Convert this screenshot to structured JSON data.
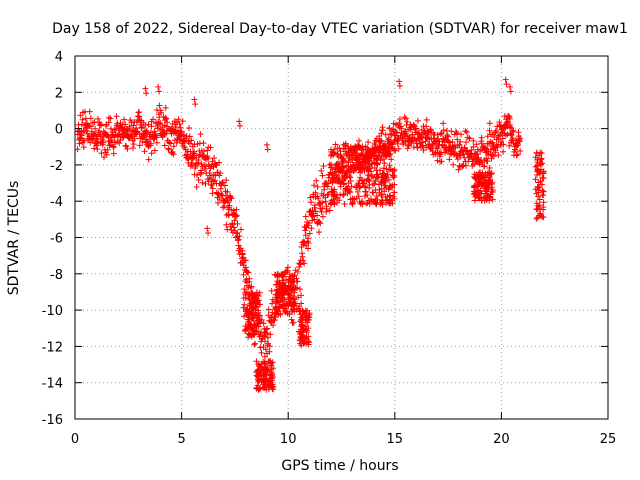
{
  "chart_data": {
    "type": "scatter",
    "title": "Day 158 of 2022, Sidereal Day-to-day VTEC variation (SDTVAR) for receiver maw1",
    "xlabel": "GPS time / hours",
    "ylabel": "SDTVAR / TECUs",
    "xlim": [
      0,
      25
    ],
    "ylim": [
      -16,
      4
    ],
    "xticks": [
      0,
      5,
      10,
      15,
      20,
      25
    ],
    "yticks": [
      -16,
      -14,
      -12,
      -10,
      -8,
      -6,
      -4,
      -2,
      0,
      2,
      4
    ],
    "grid": true,
    "marker": "plus",
    "color": "#ff0000",
    "series": [
      {
        "name": "SDTVAR",
        "trend": [
          [
            0.1,
            -0.3
          ],
          [
            0.5,
            0.1
          ],
          [
            1.0,
            -0.6
          ],
          [
            1.5,
            -0.5
          ],
          [
            2.0,
            -0.2
          ],
          [
            2.5,
            -0.3
          ],
          [
            3.0,
            0.0
          ],
          [
            3.5,
            -0.6
          ],
          [
            4.0,
            0.4
          ],
          [
            4.5,
            -0.6
          ],
          [
            5.0,
            -0.4
          ],
          [
            5.5,
            -1.5
          ],
          [
            6.0,
            -1.8
          ],
          [
            6.5,
            -2.5
          ],
          [
            7.0,
            -3.6
          ],
          [
            7.3,
            -4.2
          ],
          [
            7.6,
            -5.6
          ],
          [
            7.9,
            -7.5
          ],
          [
            8.2,
            -9.3
          ],
          [
            8.5,
            -10.4
          ],
          [
            8.8,
            -11.5
          ],
          [
            9.1,
            -11.0
          ],
          [
            9.4,
            -10.0
          ],
          [
            9.7,
            -9.0
          ],
          [
            10.0,
            -8.8
          ],
          [
            10.3,
            -9.8
          ],
          [
            10.6,
            -8.0
          ],
          [
            10.8,
            -6.0
          ],
          [
            11.0,
            -4.8
          ],
          [
            11.5,
            -4.0
          ],
          [
            12.0,
            -3.0
          ],
          [
            12.5,
            -2.2
          ],
          [
            13.0,
            -1.7
          ],
          [
            13.5,
            -1.7
          ],
          [
            14.0,
            -1.4
          ],
          [
            14.5,
            -0.8
          ],
          [
            15.0,
            -0.6
          ],
          [
            15.5,
            0.0
          ],
          [
            16.0,
            -0.6
          ],
          [
            16.5,
            -0.4
          ],
          [
            17.0,
            -0.9
          ],
          [
            17.5,
            -0.8
          ],
          [
            18.0,
            -1.2
          ],
          [
            18.5,
            -1.3
          ],
          [
            19.0,
            -1.7
          ],
          [
            19.5,
            -1.0
          ],
          [
            20.0,
            -0.2
          ],
          [
            20.3,
            0.2
          ],
          [
            20.6,
            -0.9
          ],
          [
            20.9,
            -0.5
          ]
        ],
        "spread": [
          1.4,
          1.3,
          1.4,
          1.3,
          1.2,
          1.2,
          1.4,
          1.6,
          1.5,
          1.4,
          1.5,
          1.7,
          1.7,
          1.6,
          1.6,
          1.5,
          1.6,
          1.7,
          1.9,
          2.3,
          2.6,
          2.8,
          2.2,
          1.9,
          1.8,
          2.2,
          2.2,
          2.0,
          2.2,
          2.2,
          2.0,
          1.8,
          1.4,
          1.3,
          1.2,
          1.2,
          1.3,
          1.4,
          1.2,
          1.2,
          1.3,
          1.3,
          1.4,
          1.4,
          1.6,
          1.6,
          1.7,
          1.6,
          1.0,
          0.9
        ],
        "clusters": [
          {
            "x": [
              7.9,
              8.7
            ],
            "y": [
              -11.5,
              -9.0
            ]
          },
          {
            "x": [
              8.5,
              9.3
            ],
            "y": [
              -14.4,
              -12.8
            ]
          },
          {
            "x": [
              9.4,
              10.3
            ],
            "y": [
              -10.2,
              -8.0
            ]
          },
          {
            "x": [
              10.5,
              11.0
            ],
            "y": [
              -12.0,
              -10.0
            ]
          },
          {
            "x": [
              12.0,
              15.0
            ],
            "y": [
              -4.2,
              -0.8
            ]
          },
          {
            "x": [
              18.7,
              19.6
            ],
            "y": [
              -4.0,
              -2.4
            ]
          },
          {
            "x": [
              21.6,
              22.0
            ],
            "y": [
              -5.2,
              -1.3
            ]
          }
        ],
        "outliers": [
          [
            3.3,
            2.2
          ],
          [
            3.9,
            2.3
          ],
          [
            5.6,
            1.6
          ],
          [
            15.2,
            2.6
          ],
          [
            20.2,
            2.7
          ],
          [
            20.4,
            2.3
          ],
          [
            7.7,
            0.4
          ],
          [
            9.0,
            -0.9
          ],
          [
            6.2,
            -5.5
          ],
          [
            7.1,
            -5.3
          ]
        ]
      }
    ]
  }
}
